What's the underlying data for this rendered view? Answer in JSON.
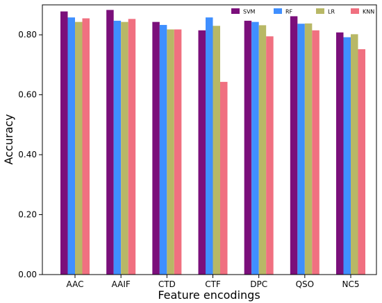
{
  "chart_data": {
    "type": "bar",
    "xlabel": "Feature encodings",
    "ylabel": "Accuracy",
    "ylim": [
      0,
      0.9
    ],
    "yticks": [
      0.0,
      0.2,
      0.4,
      0.6,
      0.8
    ],
    "ytick_labels": [
      "0.00",
      "0.20",
      "0.40",
      "0.60",
      "0.80"
    ],
    "categories": [
      "AAC",
      "AAIF",
      "CTD",
      "CTF",
      "DPC",
      "QSO",
      "NC5"
    ],
    "legend_position": "top-right",
    "grid": false,
    "series": [
      {
        "name": "SVM",
        "color": "#7b0f7b",
        "values": [
          0.878,
          0.883,
          0.843,
          0.815,
          0.847,
          0.862,
          0.808
        ]
      },
      {
        "name": "RF",
        "color": "#3f8fff",
        "values": [
          0.858,
          0.847,
          0.833,
          0.858,
          0.843,
          0.837,
          0.792
        ]
      },
      {
        "name": "LR",
        "color": "#b8b866",
        "values": [
          0.843,
          0.843,
          0.818,
          0.83,
          0.832,
          0.838,
          0.802
        ]
      },
      {
        "name": "KNN",
        "color": "#f07080",
        "values": [
          0.855,
          0.853,
          0.818,
          0.643,
          0.795,
          0.815,
          0.752
        ]
      }
    ]
  }
}
